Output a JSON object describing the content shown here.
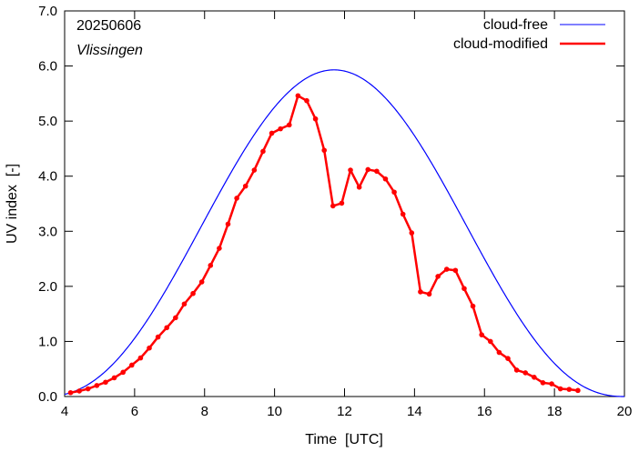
{
  "chart_data": {
    "type": "line",
    "xlabel": "Time  [UTC]",
    "ylabel": "UV index  [-]",
    "xlim": [
      4,
      20
    ],
    "ylim": [
      0,
      7
    ],
    "xticks": [
      4,
      6,
      8,
      10,
      12,
      14,
      16,
      18,
      20
    ],
    "yticks": [
      0.0,
      1.0,
      2.0,
      3.0,
      4.0,
      5.0,
      6.0,
      7.0
    ],
    "xtick_labels": [
      "4",
      "6",
      "8",
      "10",
      "12",
      "14",
      "16",
      "18",
      "20"
    ],
    "ytick_labels": [
      "0.0",
      "1.0",
      "2.0",
      "3.0",
      "4.0",
      "5.0",
      "6.0",
      "7.0"
    ],
    "grid": false,
    "legend_position": "top-right",
    "annotations": {
      "date": "20250606",
      "station": "Vlissingen"
    },
    "series": [
      {
        "name": "cloud-free",
        "color": "#0000ff",
        "curve": {
          "peak_time": 11.7,
          "peak_value": 5.93,
          "start": 4.0,
          "end": 20.0
        }
      },
      {
        "name": "cloud-modified",
        "color": "#ff0000",
        "marker": "circle",
        "x": [
          4.17,
          4.42,
          4.67,
          4.92,
          5.17,
          5.42,
          5.67,
          5.92,
          6.17,
          6.42,
          6.67,
          6.92,
          7.17,
          7.42,
          7.67,
          7.92,
          8.17,
          8.42,
          8.67,
          8.92,
          9.17,
          9.42,
          9.67,
          9.92,
          10.17,
          10.42,
          10.67,
          10.92,
          11.17,
          11.42,
          11.67,
          11.92,
          12.17,
          12.42,
          12.67,
          12.92,
          13.17,
          13.42,
          13.67,
          13.92,
          14.17,
          14.42,
          14.67,
          14.92,
          15.17,
          15.42,
          15.67,
          15.92,
          16.17,
          16.42,
          16.67,
          16.92,
          17.17,
          17.42,
          17.67,
          17.92,
          18.17,
          18.42,
          18.67
        ],
        "values": [
          0.07,
          0.1,
          0.14,
          0.2,
          0.26,
          0.34,
          0.44,
          0.57,
          0.7,
          0.88,
          1.08,
          1.25,
          1.43,
          1.68,
          1.87,
          2.08,
          2.38,
          2.69,
          3.13,
          3.6,
          3.82,
          4.11,
          4.45,
          4.78,
          4.86,
          4.93,
          5.46,
          5.37,
          5.04,
          4.47,
          3.46,
          3.51,
          4.11,
          3.8,
          4.12,
          4.09,
          3.95,
          3.71,
          3.31,
          2.97,
          1.9,
          1.86,
          2.18,
          2.31,
          2.29,
          1.96,
          1.64,
          1.12,
          1.0,
          0.8,
          0.69,
          0.48,
          0.43,
          0.35,
          0.25,
          0.23,
          0.14,
          0.13,
          0.11
        ]
      }
    ]
  }
}
